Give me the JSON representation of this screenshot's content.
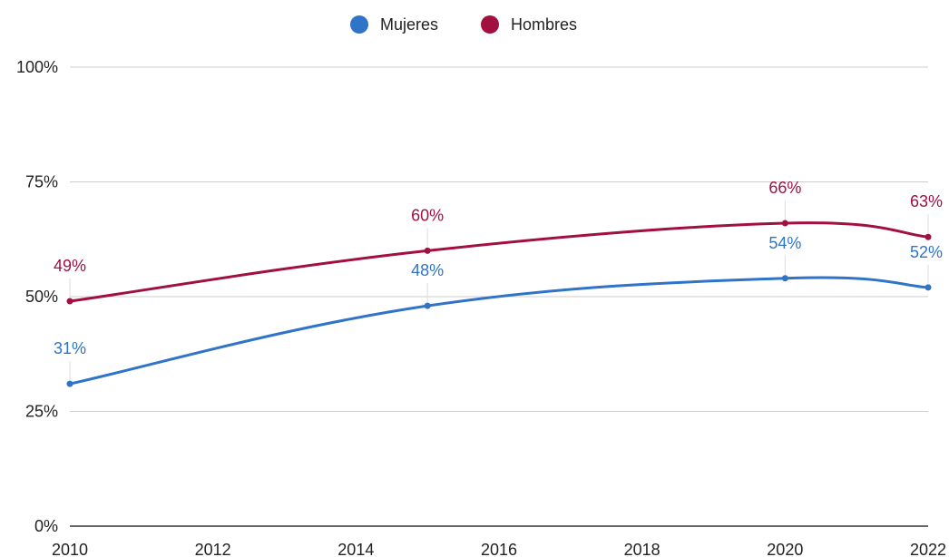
{
  "chart_data": {
    "type": "line",
    "title": "",
    "xlabel": "",
    "ylabel": "",
    "x_ticks": [
      "2010",
      "2012",
      "2014",
      "2016",
      "2018",
      "2020",
      "2022"
    ],
    "y_ticks": [
      "0%",
      "25%",
      "50%",
      "75%",
      "100%"
    ],
    "xlim": [
      2010,
      2022
    ],
    "ylim": [
      0,
      100
    ],
    "grid": true,
    "legend_position": "top",
    "series": [
      {
        "name": "Mujeres",
        "color": "#2f74c8",
        "x": [
          2010,
          2015,
          2020,
          2022
        ],
        "values": [
          31,
          48,
          54,
          52
        ],
        "labels": [
          "31%",
          "48%",
          "54%",
          "52%"
        ]
      },
      {
        "name": "Hombres",
        "color": "#a2103f",
        "x": [
          2010,
          2015,
          2020,
          2022
        ],
        "values": [
          49,
          60,
          66,
          63
        ],
        "labels": [
          "49%",
          "60%",
          "66%",
          "63%"
        ]
      }
    ]
  }
}
